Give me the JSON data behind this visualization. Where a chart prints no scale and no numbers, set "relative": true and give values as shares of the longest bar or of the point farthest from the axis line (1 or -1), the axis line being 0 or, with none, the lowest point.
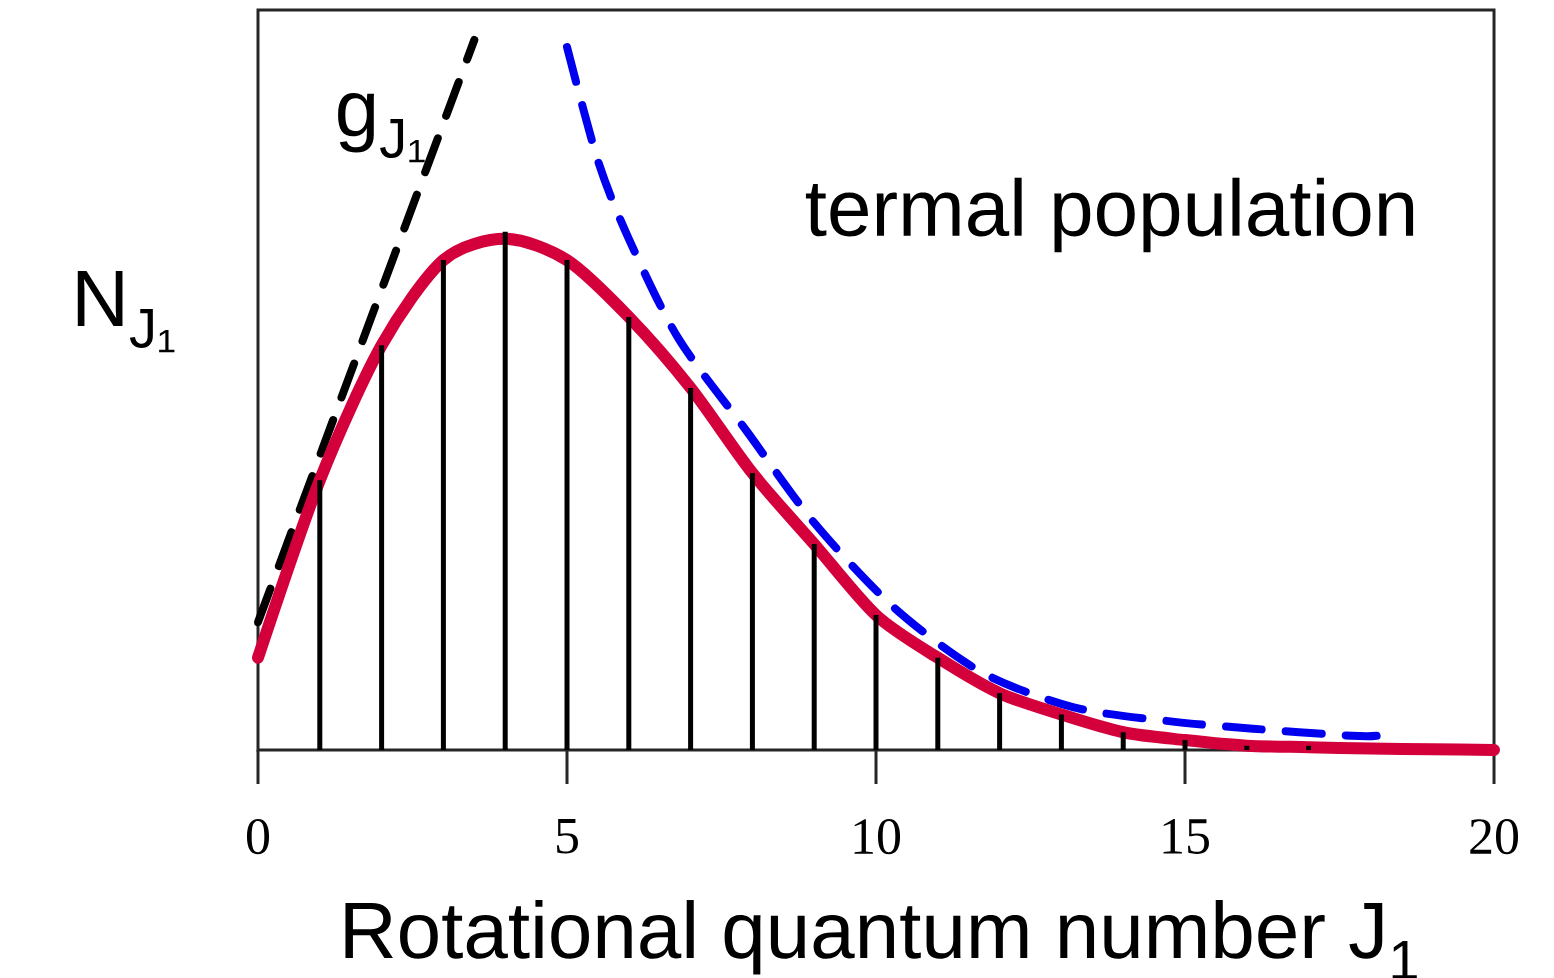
{
  "chart_data": {
    "type": "line",
    "xlabel": "Rotational quantum number J$_{1}$",
    "ylabel": "N$_{J₁}$",
    "relative": true,
    "xlim": [
      0,
      20
    ],
    "xticks": [
      0,
      5,
      10,
      15,
      20
    ],
    "annotations": [
      "termal population"
    ],
    "series": [
      {
        "name": "g$_{J₁}$",
        "color": "#000000",
        "line_style": "dashed",
        "x": [
          0,
          3.5
        ],
        "values": [
          0.18,
          1
        ]
      },
      {
        "color": "#0000ee",
        "line_style": "dashed",
        "x": [
          5,
          5.5,
          6,
          6.8,
          7.9,
          9,
          10.3,
          11.7,
          13.2,
          14.8,
          16.1,
          17.7,
          18.1
        ],
        "values": [
          0.99,
          0.83,
          0.72,
          0.58,
          0.45,
          0.32,
          0.2,
          0.11,
          0.06,
          0.04,
          0.03,
          0.02,
          0.02
        ]
      },
      {
        "color": "#d4003c",
        "line_style": "solid",
        "x": [
          0,
          1,
          2,
          3,
          4,
          5,
          6,
          7,
          8,
          9,
          10,
          11,
          12,
          13,
          14,
          15,
          16,
          17,
          18,
          19,
          20
        ],
        "values": [
          0.13,
          0.38,
          0.57,
          0.69,
          0.72,
          0.69,
          0.61,
          0.51,
          0.39,
          0.29,
          0.19,
          0.13,
          0.08,
          0.05,
          0.025,
          0.014,
          0.006,
          0.004,
          0.002,
          0.001,
          0
        ]
      },
      {
        "type": "bar",
        "color": "#000000",
        "x": [
          1,
          2,
          3,
          4,
          5,
          6,
          7,
          8,
          9,
          10,
          11,
          12,
          13,
          14,
          15,
          16,
          17
        ],
        "values": [
          0.38,
          0.57,
          0.69,
          0.73,
          0.69,
          0.61,
          0.51,
          0.39,
          0.29,
          0.19,
          0.13,
          0.08,
          0.05,
          0.025,
          0.014,
          0.006,
          0.006
        ]
      }
    ]
  }
}
